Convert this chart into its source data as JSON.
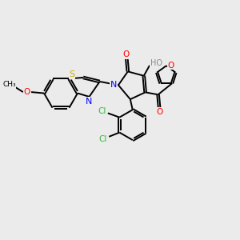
{
  "background_color": "#ebebeb",
  "bond_color": "#000000",
  "atom_colors": {
    "N": "#0000ff",
    "O": "#ff0000",
    "S": "#ccaa00",
    "Cl": "#33bb33",
    "H": "#888888",
    "C": "#000000"
  }
}
